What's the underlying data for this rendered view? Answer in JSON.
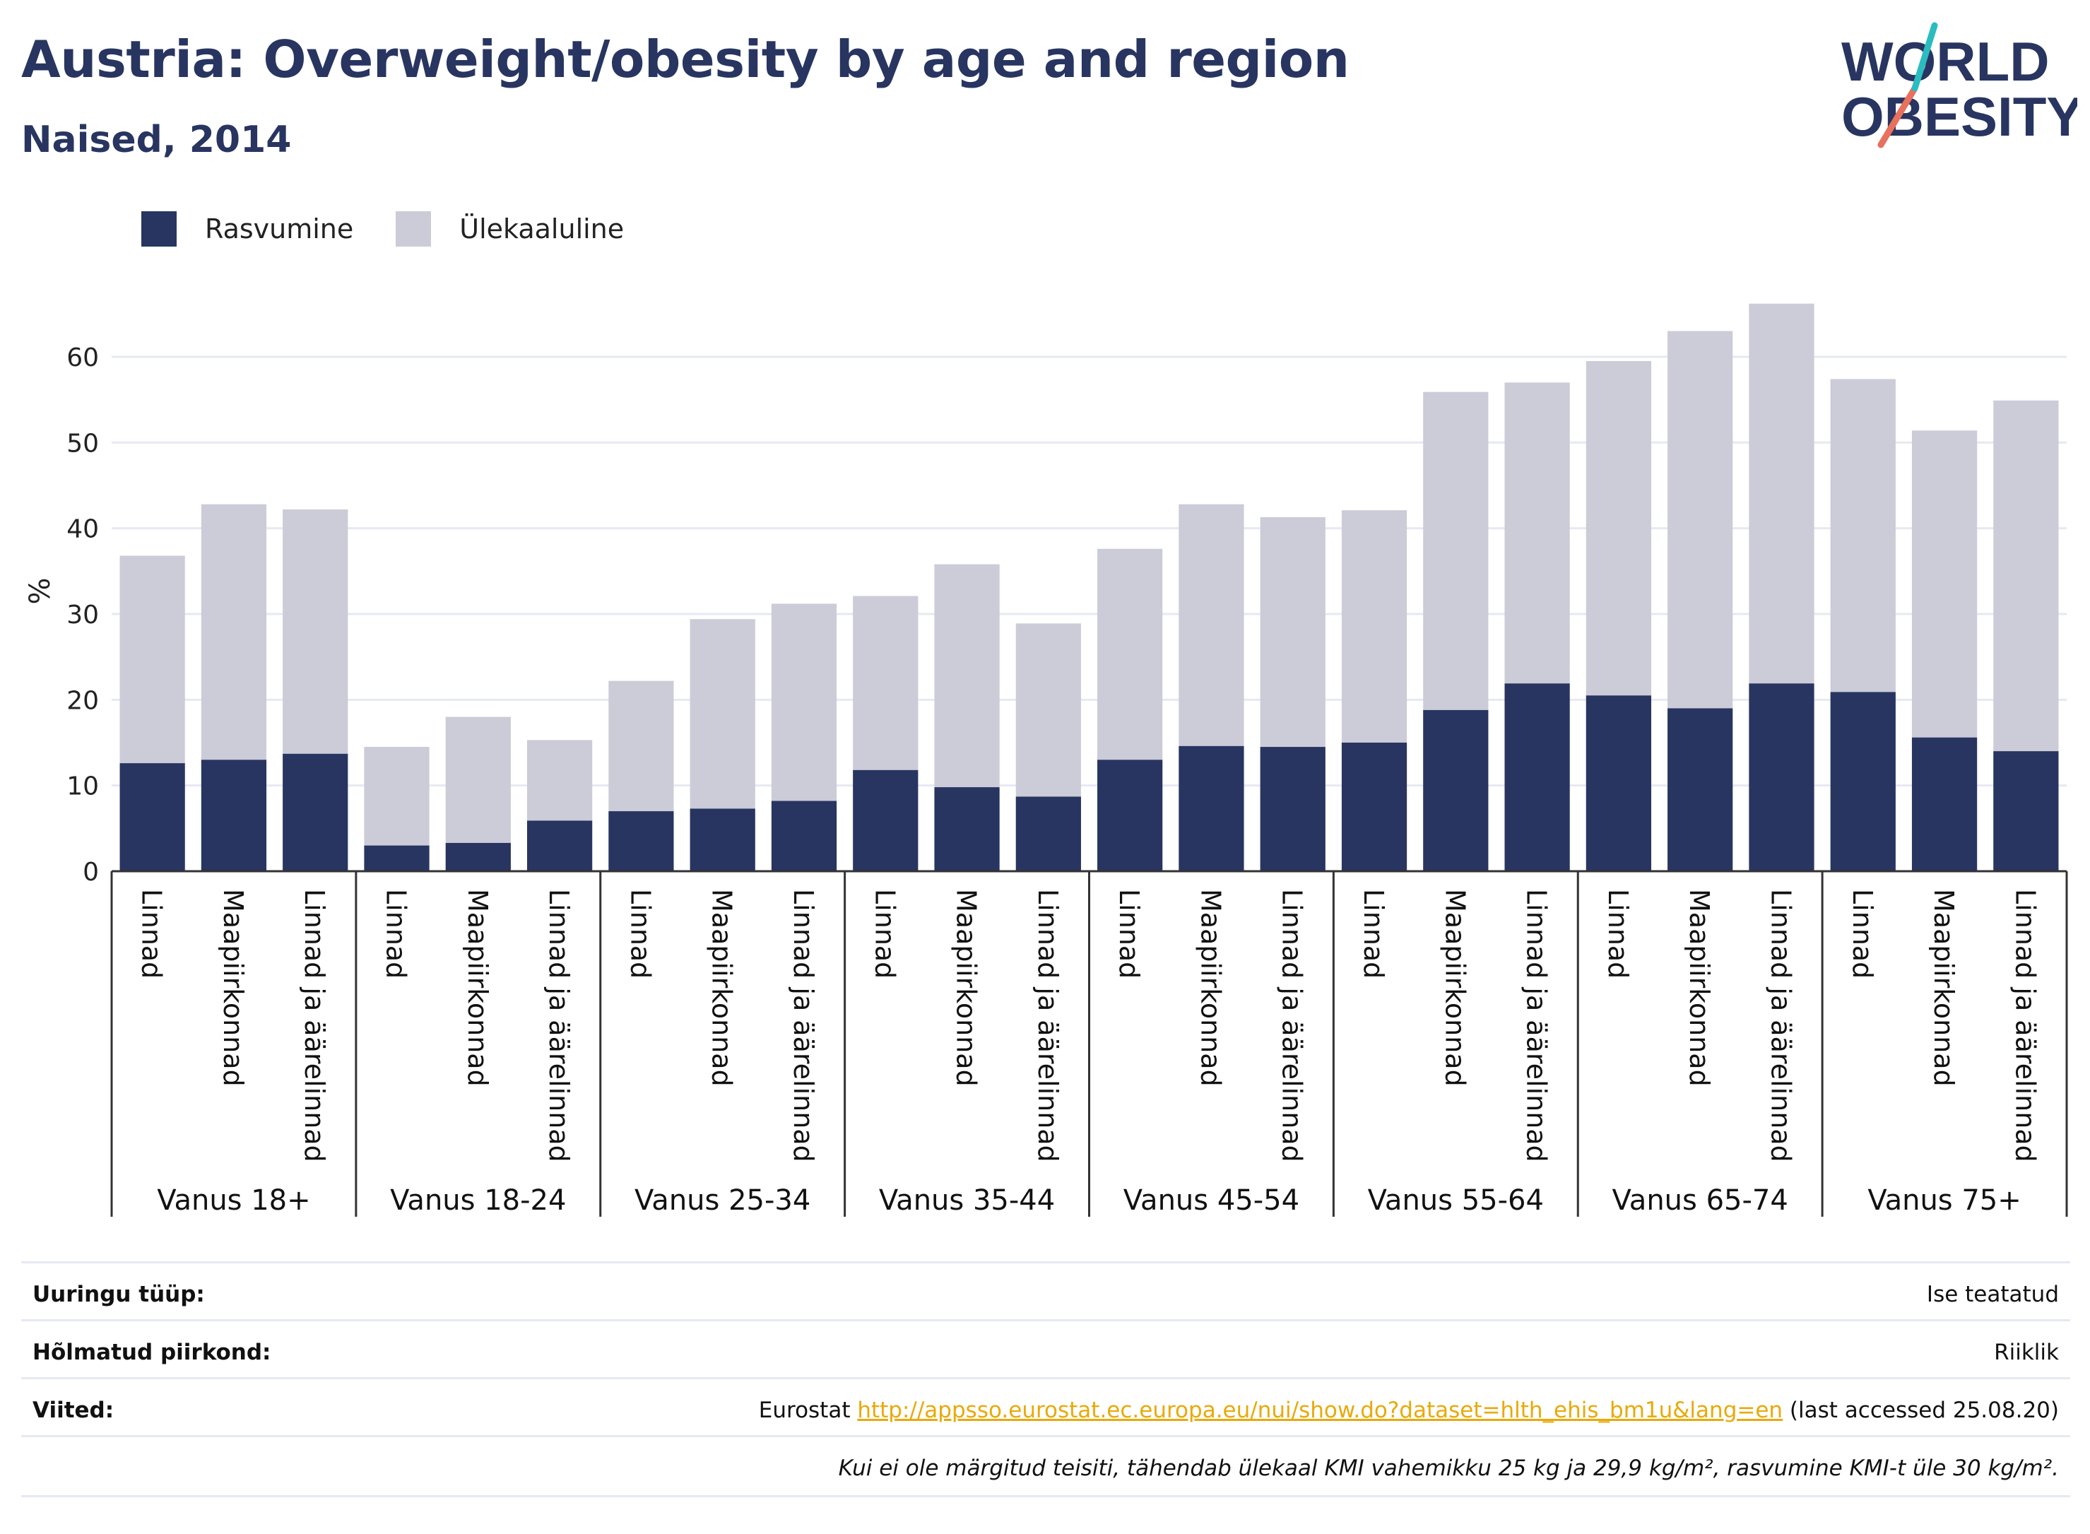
{
  "title": "Austria: Overweight/obesity by age and region",
  "subtitle": "Naised, 2014",
  "logo": {
    "line1": "WORLD",
    "line2": "OBESITY"
  },
  "colors": {
    "obesity": "#283561",
    "overweight": "#cbccd8",
    "title": "#283561",
    "link": "#e9a90a",
    "grid": "#e6e9f2"
  },
  "legend": {
    "obesity": "Rasvumine",
    "overweight": "Ülekaaluline"
  },
  "chart_data": {
    "type": "bar",
    "stacked": true,
    "ylabel": "%",
    "ylim": [
      0,
      67
    ],
    "yticks": [
      0,
      10,
      20,
      30,
      40,
      50,
      60
    ],
    "grid": true,
    "legend_position": "top-left",
    "subcategories": [
      "Linnad",
      "Maapiirkonnad",
      "Linnad ja äärelinnad"
    ],
    "groups": [
      "Vanus 18+",
      "Vanus 18-24",
      "Vanus 25-34",
      "Vanus 35-44",
      "Vanus 45-54",
      "Vanus 55-64",
      "Vanus 65-74",
      "Vanus 75+"
    ],
    "series": [
      {
        "name": "Rasvumine",
        "values": [
          12.6,
          13.0,
          13.7,
          3.0,
          3.3,
          5.9,
          7.0,
          7.3,
          8.2,
          11.8,
          9.8,
          8.7,
          13.0,
          14.6,
          14.5,
          15.0,
          18.8,
          21.9,
          20.5,
          19.0,
          21.9,
          20.9,
          15.6,
          14.0
        ]
      },
      {
        "name": "Ülekaaluline",
        "values": [
          24.2,
          29.8,
          28.5,
          11.5,
          14.7,
          9.4,
          15.2,
          22.1,
          23.0,
          20.3,
          26.0,
          20.2,
          24.6,
          28.2,
          26.8,
          27.1,
          37.1,
          35.1,
          39.0,
          44.0,
          44.3,
          36.5,
          35.8,
          40.9
        ]
      }
    ]
  },
  "info": [
    {
      "key": "Uuringu tüüp:",
      "value": "Ise teatatud"
    },
    {
      "key": "Hõlmatud piirkond:",
      "value": "Riiklik"
    },
    {
      "key": "Viited:",
      "prefix": "Eurostat ",
      "link": "http://appsso.eurostat.ec.europa.eu/nui/show.do?dataset=hlth_ehis_bm1u&lang=en",
      "suffix": " (last accessed 25.08.20)"
    }
  ],
  "note": "Kui ei ole märgitud teisiti, tähendab ülekaal KMI vahemikku 25 kg ja 29,9 kg/m², rasvumine KMI-t üle 30 kg/m²."
}
